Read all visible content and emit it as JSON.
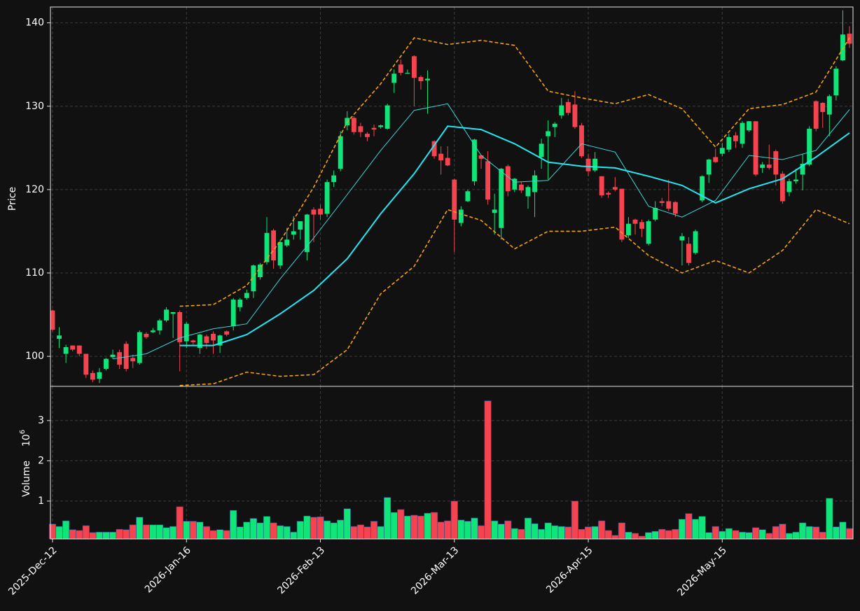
{
  "chart_data": {
    "type": "candlestick",
    "ylabel": "Price",
    "ylim": [
      96.4,
      141.9
    ],
    "yticks": [
      100,
      110,
      120,
      130,
      140
    ],
    "grid": true,
    "up_color": "#10e57a",
    "down_color": "#f5444f",
    "categories": [
      "2025-Dec-12",
      null,
      null,
      null,
      null,
      null,
      null,
      null,
      null,
      null,
      null,
      null,
      null,
      null,
      null,
      null,
      null,
      null,
      null,
      null,
      "2026-Jan-16",
      null,
      null,
      null,
      null,
      null,
      null,
      null,
      null,
      null,
      null,
      null,
      null,
      null,
      null,
      null,
      null,
      null,
      null,
      null,
      "2026-Feb-13",
      null,
      null,
      null,
      null,
      null,
      null,
      null,
      null,
      null,
      null,
      null,
      null,
      null,
      null,
      null,
      null,
      null,
      null,
      null,
      "2026-Mar-13",
      null,
      null,
      null,
      null,
      null,
      null,
      null,
      null,
      null,
      null,
      null,
      null,
      null,
      null,
      null,
      null,
      null,
      null,
      null,
      "2026-Apr-15",
      null,
      null,
      null,
      null,
      null,
      null,
      null,
      null,
      null,
      null,
      null,
      null,
      null,
      null,
      null,
      null,
      null,
      null,
      null,
      "2026-May-15",
      null,
      null,
      null,
      null,
      null,
      null,
      null,
      null,
      null,
      null,
      null,
      null,
      null,
      null,
      null,
      null,
      null,
      null,
      null
    ],
    "open": [
      105.5,
      102.1,
      100.3,
      101.3,
      101.3,
      100.3,
      98.0,
      97.3,
      98.5,
      99.9,
      100.5,
      101.5,
      99.8,
      99.2,
      102.7,
      102.9,
      103.1,
      104.3,
      105.1,
      105.3,
      101.8,
      101.9,
      101.0,
      102.4,
      102.7,
      101.3,
      103.0,
      103.6,
      105.9,
      107.0,
      107.8,
      109.5,
      111.3,
      115.1,
      110.9,
      113.3,
      114.6,
      115.2,
      112.5,
      117.6,
      117.7,
      117.1,
      120.9,
      122.5,
      127.7,
      128.6,
      127.6,
      126.7,
      127.4,
      127.5,
      127.3,
      132.8,
      135.0,
      133.9,
      136.0,
      133.5,
      133.1,
      125.8,
      124.3,
      123.8,
      121.2,
      116.0,
      118.6,
      121.0,
      124.1,
      123.4,
      117.2,
      115.4,
      122.8,
      120.0,
      120.6,
      119.2,
      119.7,
      123.9,
      126.4,
      127.5,
      128.9,
      130.5,
      130.2,
      127.7,
      123.7,
      122.3,
      121.6,
      119.6,
      120.3,
      120.1,
      114.5,
      116.4,
      116.1,
      113.5,
      116.4,
      118.6,
      118.6,
      118.5,
      113.9,
      113.5,
      112.4,
      118.7,
      121.8,
      123.9,
      124.3,
      124.8,
      126.5,
      125.5,
      127.1,
      128.2,
      122.6,
      123.0,
      124.6,
      121.9,
      119.7,
      121.0,
      121.8,
      123.0,
      130.6,
      130.4,
      129.0,
      131.3,
      135.5,
      138.7
    ],
    "high": [
      105.6,
      103.5,
      101.4,
      101.3,
      101.3,
      100.3,
      98.3,
      98.6,
      99.8,
      100.8,
      100.8,
      101.8,
      100.2,
      103.1,
      102.9,
      103.4,
      104.5,
      105.9,
      105.3,
      105.5,
      104.1,
      102.0,
      102.7,
      102.6,
      103.0,
      102.6,
      103.1,
      107.0,
      107.0,
      108.0,
      111.0,
      111.2,
      116.7,
      115.3,
      114.0,
      115.4,
      116.8,
      116.2,
      117.1,
      117.9,
      118.2,
      121.2,
      122.3,
      127.0,
      129.4,
      128.8,
      128.0,
      126.9,
      127.8,
      127.8,
      130.3,
      134.4,
      135.6,
      134.4,
      136.1,
      133.7,
      134.3,
      125.9,
      125.2,
      125.2,
      121.3,
      118.0,
      120.0,
      126.1,
      124.2,
      124.6,
      119.5,
      122.6,
      123.0,
      121.4,
      120.9,
      120.5,
      122.3,
      126.1,
      128.3,
      128.1,
      131.0,
      130.9,
      131.8,
      128.0,
      124.3,
      124.5,
      121.6,
      119.8,
      121.5,
      120.1,
      116.7,
      116.5,
      116.4,
      116.4,
      118.6,
      119.0,
      121.2,
      118.6,
      114.8,
      114.3,
      115.2,
      121.7,
      123.7,
      124.9,
      125.6,
      126.7,
      126.9,
      128.2,
      128.2,
      128.2,
      123.3,
      125.4,
      124.8,
      122.2,
      121.3,
      122.5,
      124.3,
      127.6,
      130.7,
      130.5,
      131.4,
      134.8,
      141.5,
      139.6
    ],
    "low": [
      103.0,
      101.0,
      99.2,
      100.6,
      100.0,
      97.4,
      96.9,
      96.8,
      98.3,
      99.7,
      98.5,
      98.2,
      98.6,
      99.0,
      102.1,
      102.8,
      102.6,
      104.1,
      102.2,
      98.2,
      101.0,
      101.4,
      100.3,
      100.9,
      100.3,
      100.4,
      102.4,
      103.1,
      105.4,
      106.8,
      107.0,
      109.2,
      111.0,
      110.5,
      110.5,
      113.1,
      114.0,
      114.0,
      111.5,
      113.7,
      116.4,
      116.7,
      120.3,
      122.2,
      127.1,
      126.6,
      126.3,
      125.8,
      126.4,
      127.3,
      127.2,
      131.6,
      133.7,
      133.9,
      130.0,
      132.0,
      129.1,
      123.7,
      121.8,
      122.8,
      112.5,
      115.6,
      118.5,
      120.5,
      122.5,
      118.2,
      114.6,
      114.0,
      119.2,
      119.7,
      119.6,
      117.7,
      116.7,
      122.5,
      121.2,
      126.3,
      128.5,
      128.9,
      127.3,
      123.8,
      121.6,
      122.1,
      119.0,
      119.0,
      119.8,
      113.7,
      114.2,
      114.6,
      114.3,
      113.3,
      116.2,
      118.0,
      117.4,
      116.7,
      110.9,
      110.9,
      112.2,
      118.5,
      120.8,
      123.2,
      124.0,
      124.5,
      125.0,
      125.0,
      126.9,
      121.6,
      122.0,
      122.4,
      120.5,
      118.3,
      119.2,
      120.7,
      119.9,
      122.8,
      127.0,
      127.4,
      126.4,
      130.7,
      135.4,
      137.0
    ],
    "close": [
      103.2,
      102.5,
      101.1,
      100.8,
      100.3,
      97.8,
      97.2,
      98.1,
      99.7,
      100.2,
      99.0,
      98.5,
      99.4,
      102.9,
      102.3,
      103.1,
      104.3,
      105.6,
      105.3,
      101.7,
      103.9,
      101.7,
      102.6,
      101.6,
      101.9,
      102.5,
      102.6,
      106.8,
      106.8,
      107.6,
      110.9,
      111.0,
      114.8,
      111.5,
      113.7,
      114.0,
      115.0,
      116.2,
      117.0,
      117.0,
      117.0,
      120.9,
      121.7,
      126.4,
      128.6,
      126.9,
      126.9,
      126.3,
      127.2,
      127.7,
      130.1,
      133.9,
      134.0,
      134.0,
      133.4,
      133.0,
      133.3,
      124.0,
      123.5,
      122.9,
      116.4,
      117.6,
      119.8,
      126.0,
      123.7,
      118.8,
      117.6,
      122.5,
      119.8,
      121.3,
      119.9,
      120.3,
      121.7,
      125.5,
      127.0,
      127.9,
      130.1,
      129.2,
      127.5,
      124.0,
      122.2,
      123.7,
      119.3,
      119.4,
      120.0,
      114.0,
      115.9,
      115.9,
      115.3,
      116.2,
      117.8,
      118.4,
      117.7,
      117.1,
      114.4,
      111.2,
      115.0,
      121.6,
      123.6,
      123.3,
      125.0,
      126.3,
      125.8,
      128.0,
      128.2,
      121.8,
      123.0,
      122.6,
      121.8,
      118.6,
      121.0,
      121.2,
      123.1,
      127.3,
      127.3,
      129.3,
      131.2,
      134.5,
      138.6,
      137.5
    ],
    "overlays": [
      {
        "color": "#3ad6d6",
        "width": 1,
        "dash": false,
        "x": [
          9,
          14,
          19,
          24,
          29,
          34,
          39,
          44,
          49,
          54,
          59,
          64,
          69,
          74,
          79,
          84,
          89,
          94,
          99,
          104,
          109,
          114,
          119
        ],
        "values": [
          99.7,
          100.3,
          102.2,
          103.3,
          103.9,
          109.3,
          114.2,
          119.4,
          124.7,
          129.5,
          130.3,
          124.1,
          120.9,
          121.1,
          125.5,
          124.5,
          118.0,
          116.7,
          118.7,
          124.1,
          123.6,
          124.7,
          129.6
        ]
      },
      {
        "color": "#22e6f2",
        "width": 2,
        "dash": false,
        "x": [
          19,
          24,
          29,
          34,
          39,
          44,
          49,
          54,
          59,
          64,
          69,
          74,
          79,
          84,
          89,
          94,
          99,
          104,
          109,
          114,
          119
        ],
        "values": [
          101.3,
          101.3,
          102.6,
          105.1,
          107.9,
          111.7,
          117.1,
          121.9,
          127.6,
          127.2,
          125.5,
          123.3,
          122.8,
          122.6,
          121.6,
          120.5,
          118.4,
          120.1,
          121.3,
          123.9,
          126.8
        ]
      },
      {
        "color": "#f5a30a",
        "width": 1.6,
        "dash": true,
        "x": [
          19,
          24,
          29,
          34,
          39,
          44,
          49,
          54,
          59,
          64,
          69,
          74,
          79,
          84,
          89,
          94,
          99,
          104,
          109,
          114,
          119
        ],
        "values": [
          106.0,
          106.2,
          108.5,
          113.8,
          120.3,
          128.1,
          132.7,
          138.2,
          137.4,
          137.9,
          137.3,
          131.8,
          131.0,
          130.3,
          131.4,
          129.7,
          125.1,
          129.7,
          130.2,
          131.7,
          138.2
        ]
      },
      {
        "color": "#f5a30a",
        "width": 1.6,
        "dash": true,
        "x": [
          19,
          24,
          29,
          34,
          39,
          44,
          49,
          54,
          59,
          64,
          69,
          74,
          79,
          84,
          89,
          94,
          99,
          104,
          109,
          114,
          119
        ],
        "values": [
          96.5,
          96.7,
          98.1,
          97.6,
          97.8,
          100.8,
          107.5,
          110.8,
          117.6,
          116.3,
          112.9,
          115.0,
          115.0,
          115.5,
          112.1,
          110.0,
          111.5,
          110.0,
          112.7,
          117.6,
          115.9
        ]
      }
    ],
    "volume_panel": {
      "ylabel": "Volume",
      "offset_base": "10",
      "offset_exponent": "6",
      "ylim": [
        0.06,
        3.85
      ],
      "yticks": [
        1,
        2,
        3
      ],
      "values": [
        0.43,
        0.37,
        0.51,
        0.29,
        0.27,
        0.39,
        0.22,
        0.23,
        0.23,
        0.23,
        0.3,
        0.29,
        0.41,
        0.6,
        0.41,
        0.41,
        0.41,
        0.34,
        0.37,
        0.86,
        0.5,
        0.5,
        0.48,
        0.37,
        0.27,
        0.29,
        0.27,
        0.77,
        0.36,
        0.48,
        0.57,
        0.46,
        0.62,
        0.46,
        0.39,
        0.37,
        0.23,
        0.5,
        0.63,
        0.6,
        0.61,
        0.51,
        0.46,
        0.53,
        0.81,
        0.37,
        0.41,
        0.36,
        0.5,
        0.37,
        1.09,
        0.72,
        0.79,
        0.63,
        0.65,
        0.63,
        0.7,
        0.72,
        0.48,
        0.51,
        1.0,
        0.53,
        0.5,
        0.58,
        0.39,
        3.49,
        0.51,
        0.43,
        0.51,
        0.32,
        0.3,
        0.58,
        0.44,
        0.3,
        0.46,
        0.39,
        0.37,
        0.36,
        1.0,
        0.3,
        0.36,
        0.37,
        0.51,
        0.27,
        0.15,
        0.46,
        0.23,
        0.2,
        0.13,
        0.22,
        0.25,
        0.3,
        0.27,
        0.3,
        0.55,
        0.69,
        0.55,
        0.62,
        0.22,
        0.37,
        0.25,
        0.32,
        0.27,
        0.23,
        0.22,
        0.34,
        0.29,
        0.2,
        0.37,
        0.43,
        0.2,
        0.23,
        0.46,
        0.37,
        0.36,
        0.23,
        1.07,
        0.36,
        0.48,
        0.32
      ]
    }
  }
}
